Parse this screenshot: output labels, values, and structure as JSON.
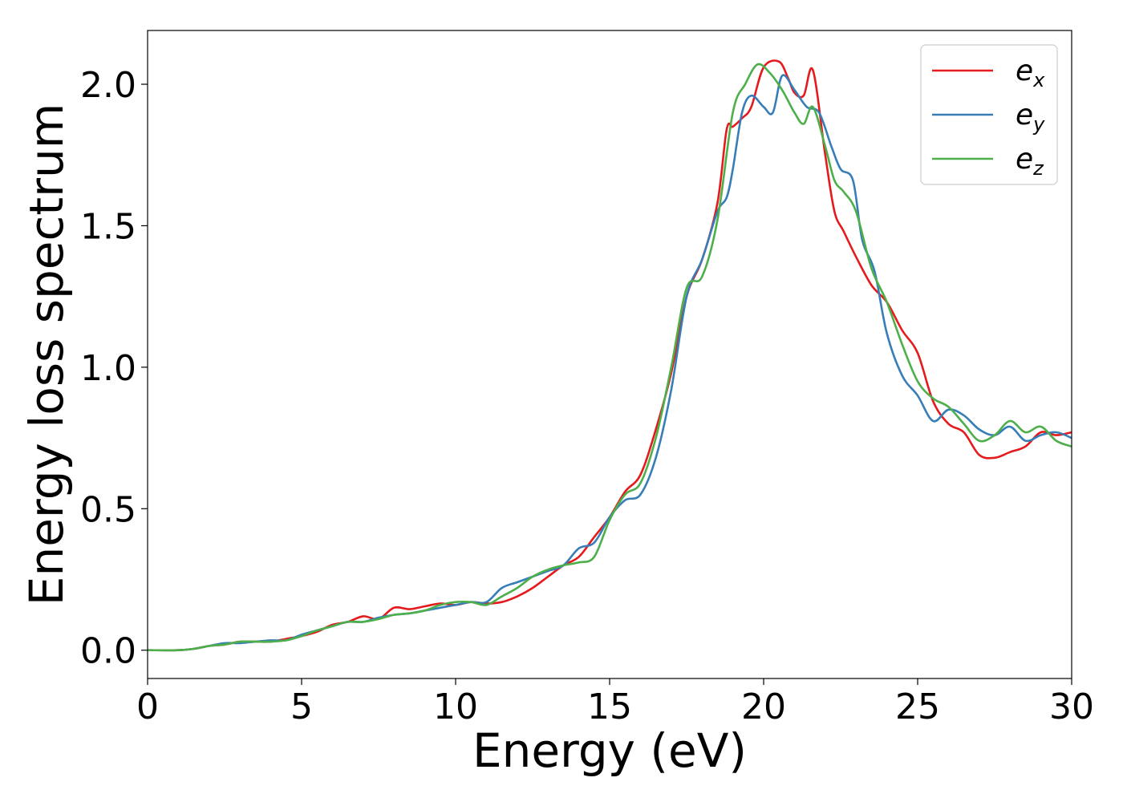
{
  "chart_data": {
    "type": "line",
    "title": "",
    "xlabel": "Energy (eV)",
    "ylabel": "Energy loss spectrum",
    "xlim": [
      0,
      30
    ],
    "ylim": [
      -0.1,
      2.19
    ],
    "xticks": [
      0,
      5,
      10,
      15,
      20,
      25,
      30
    ],
    "xtick_labels": [
      "0",
      "5",
      "10",
      "15",
      "20",
      "25",
      "30"
    ],
    "yticks": [
      0.0,
      0.5,
      1.0,
      1.5,
      2.0
    ],
    "ytick_labels": [
      "0.0",
      "0.5",
      "1.0",
      "1.5",
      "2.0"
    ],
    "grid": false,
    "legend_position": "top-right",
    "series": [
      {
        "name": "e",
        "subscript": "x",
        "color": "#e41a1c",
        "x": [
          0,
          1,
          1.5,
          2,
          2.5,
          3,
          3.5,
          4,
          4.5,
          5,
          5.5,
          6,
          6.5,
          7,
          7.5,
          8,
          8.5,
          9,
          9.5,
          10,
          10.5,
          11,
          11.5,
          12,
          12.5,
          13,
          13.5,
          14,
          14.5,
          15,
          15.5,
          16,
          16.5,
          17,
          17.5,
          18,
          18.5,
          18.8,
          19,
          19.3,
          19.6,
          20,
          20.5,
          20.8,
          21,
          21.3,
          21.6,
          22,
          22.3,
          22.6,
          23,
          23.5,
          24,
          24.5,
          25,
          25.5,
          26,
          26.5,
          27,
          27.5,
          28,
          28.5,
          29,
          29.5,
          30
        ],
        "y": [
          0,
          0,
          0.005,
          0.015,
          0.02,
          0.03,
          0.03,
          0.03,
          0.04,
          0.05,
          0.065,
          0.09,
          0.1,
          0.12,
          0.11,
          0.15,
          0.145,
          0.155,
          0.165,
          0.16,
          0.17,
          0.165,
          0.17,
          0.19,
          0.22,
          0.26,
          0.3,
          0.33,
          0.4,
          0.47,
          0.56,
          0.62,
          0.78,
          0.98,
          1.25,
          1.38,
          1.58,
          1.84,
          1.85,
          1.88,
          1.92,
          2.06,
          2.08,
          2.02,
          1.97,
          1.96,
          2.05,
          1.75,
          1.55,
          1.48,
          1.39,
          1.29,
          1.23,
          1.13,
          1.05,
          0.88,
          0.8,
          0.77,
          0.69,
          0.68,
          0.7,
          0.72,
          0.77,
          0.76,
          0.77
        ]
      },
      {
        "name": "e",
        "subscript": "y",
        "color": "#377eb8",
        "x": [
          0,
          1,
          1.5,
          2,
          2.5,
          3,
          3.5,
          4,
          4.5,
          5,
          5.5,
          6,
          6.5,
          7,
          7.5,
          8,
          8.5,
          9,
          9.5,
          10,
          10.5,
          11,
          11.5,
          12,
          12.5,
          13,
          13.5,
          14,
          14.5,
          15,
          15.5,
          16,
          16.5,
          17,
          17.5,
          18,
          18.5,
          18.8,
          19,
          19.3,
          19.6,
          20,
          20.3,
          20.6,
          21,
          21.4,
          21.8,
          22.2,
          22.5,
          22.9,
          23.2,
          23.6,
          24,
          24.5,
          25,
          25.5,
          26,
          26.5,
          27,
          27.5,
          28,
          28.5,
          29,
          29.5,
          30
        ],
        "y": [
          0,
          0,
          0.005,
          0.015,
          0.025,
          0.025,
          0.03,
          0.035,
          0.035,
          0.055,
          0.07,
          0.085,
          0.1,
          0.1,
          0.115,
          0.125,
          0.13,
          0.14,
          0.15,
          0.16,
          0.17,
          0.17,
          0.22,
          0.24,
          0.26,
          0.28,
          0.3,
          0.36,
          0.38,
          0.47,
          0.53,
          0.55,
          0.68,
          0.92,
          1.25,
          1.38,
          1.55,
          1.6,
          1.7,
          1.9,
          1.96,
          1.92,
          1.9,
          2.03,
          1.98,
          1.92,
          1.9,
          1.78,
          1.7,
          1.66,
          1.45,
          1.34,
          1.12,
          0.97,
          0.9,
          0.81,
          0.85,
          0.83,
          0.78,
          0.76,
          0.79,
          0.74,
          0.76,
          0.77,
          0.75
        ]
      },
      {
        "name": "e",
        "subscript": "z",
        "color": "#4daf4a",
        "x": [
          0,
          1,
          1.5,
          2,
          2.5,
          3,
          3.5,
          4,
          4.5,
          5,
          5.5,
          6,
          6.5,
          7,
          7.5,
          8,
          8.5,
          9,
          9.5,
          10,
          10.5,
          11,
          11.5,
          12,
          12.5,
          13,
          13.5,
          14,
          14.5,
          15,
          15.5,
          16,
          16.5,
          17,
          17.5,
          18,
          18.5,
          19,
          19.4,
          19.8,
          20.2,
          20.6,
          21,
          21.3,
          21.6,
          22,
          22.3,
          22.6,
          23,
          23.5,
          24,
          24.5,
          25,
          25.5,
          26,
          26.5,
          27,
          27.5,
          28,
          28.5,
          29,
          29.5,
          30
        ],
        "y": [
          0,
          0,
          0.005,
          0.015,
          0.02,
          0.03,
          0.03,
          0.03,
          0.035,
          0.05,
          0.07,
          0.085,
          0.1,
          0.1,
          0.11,
          0.125,
          0.13,
          0.14,
          0.16,
          0.17,
          0.17,
          0.16,
          0.19,
          0.22,
          0.26,
          0.285,
          0.3,
          0.31,
          0.33,
          0.46,
          0.55,
          0.59,
          0.75,
          1.0,
          1.28,
          1.32,
          1.52,
          1.9,
          2.0,
          2.07,
          2.04,
          1.98,
          1.9,
          1.86,
          1.92,
          1.78,
          1.66,
          1.62,
          1.55,
          1.35,
          1.23,
          1.08,
          0.95,
          0.89,
          0.86,
          0.8,
          0.74,
          0.76,
          0.81,
          0.77,
          0.79,
          0.74,
          0.72
        ]
      }
    ]
  }
}
